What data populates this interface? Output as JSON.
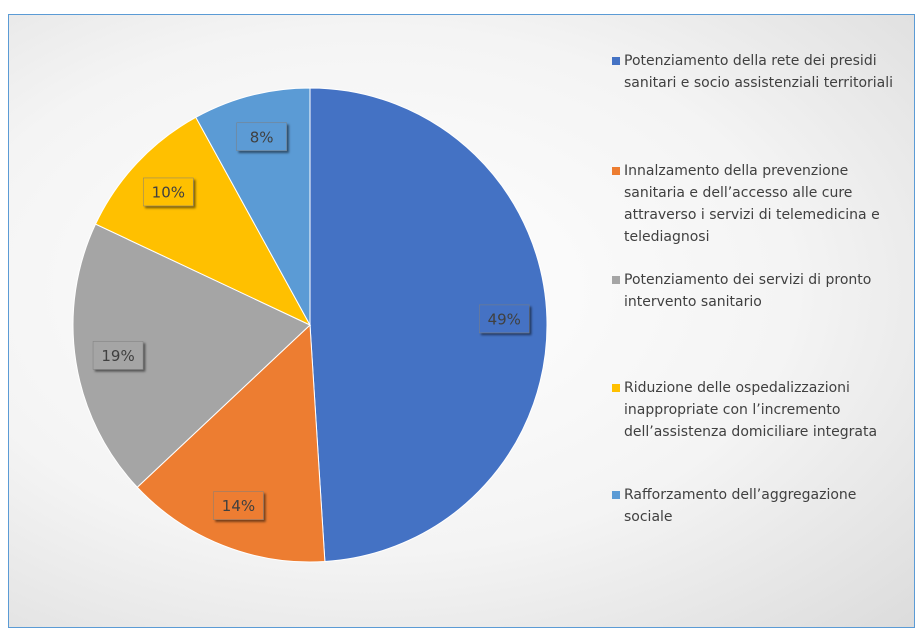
{
  "chart_data": {
    "type": "pie",
    "categories": [
      "Potenziamento della rete dei presidi sanitari e socio assistenziali territoriali",
      "Innalzamento della prevenzione sanitaria e dell’accesso alle cure attraverso i servizi di telemedicina e telediagnosi",
      "Potenziamento dei servizi di pronto intervento sanitario",
      "Riduzione delle ospedalizzazioni inappropriate con l’incremento dell’assistenza domiciliare integrata",
      "Rafforzamento dell’aggregazione sociale"
    ],
    "values": [
      49,
      14,
      19,
      10,
      8
    ],
    "value_labels": [
      "49%",
      "14%",
      "19%",
      "10%",
      "8%"
    ],
    "colors": [
      "#4472c4",
      "#ed7d31",
      "#a5a5a5",
      "#ffc000",
      "#5b9bd5"
    ],
    "legend": "right"
  }
}
